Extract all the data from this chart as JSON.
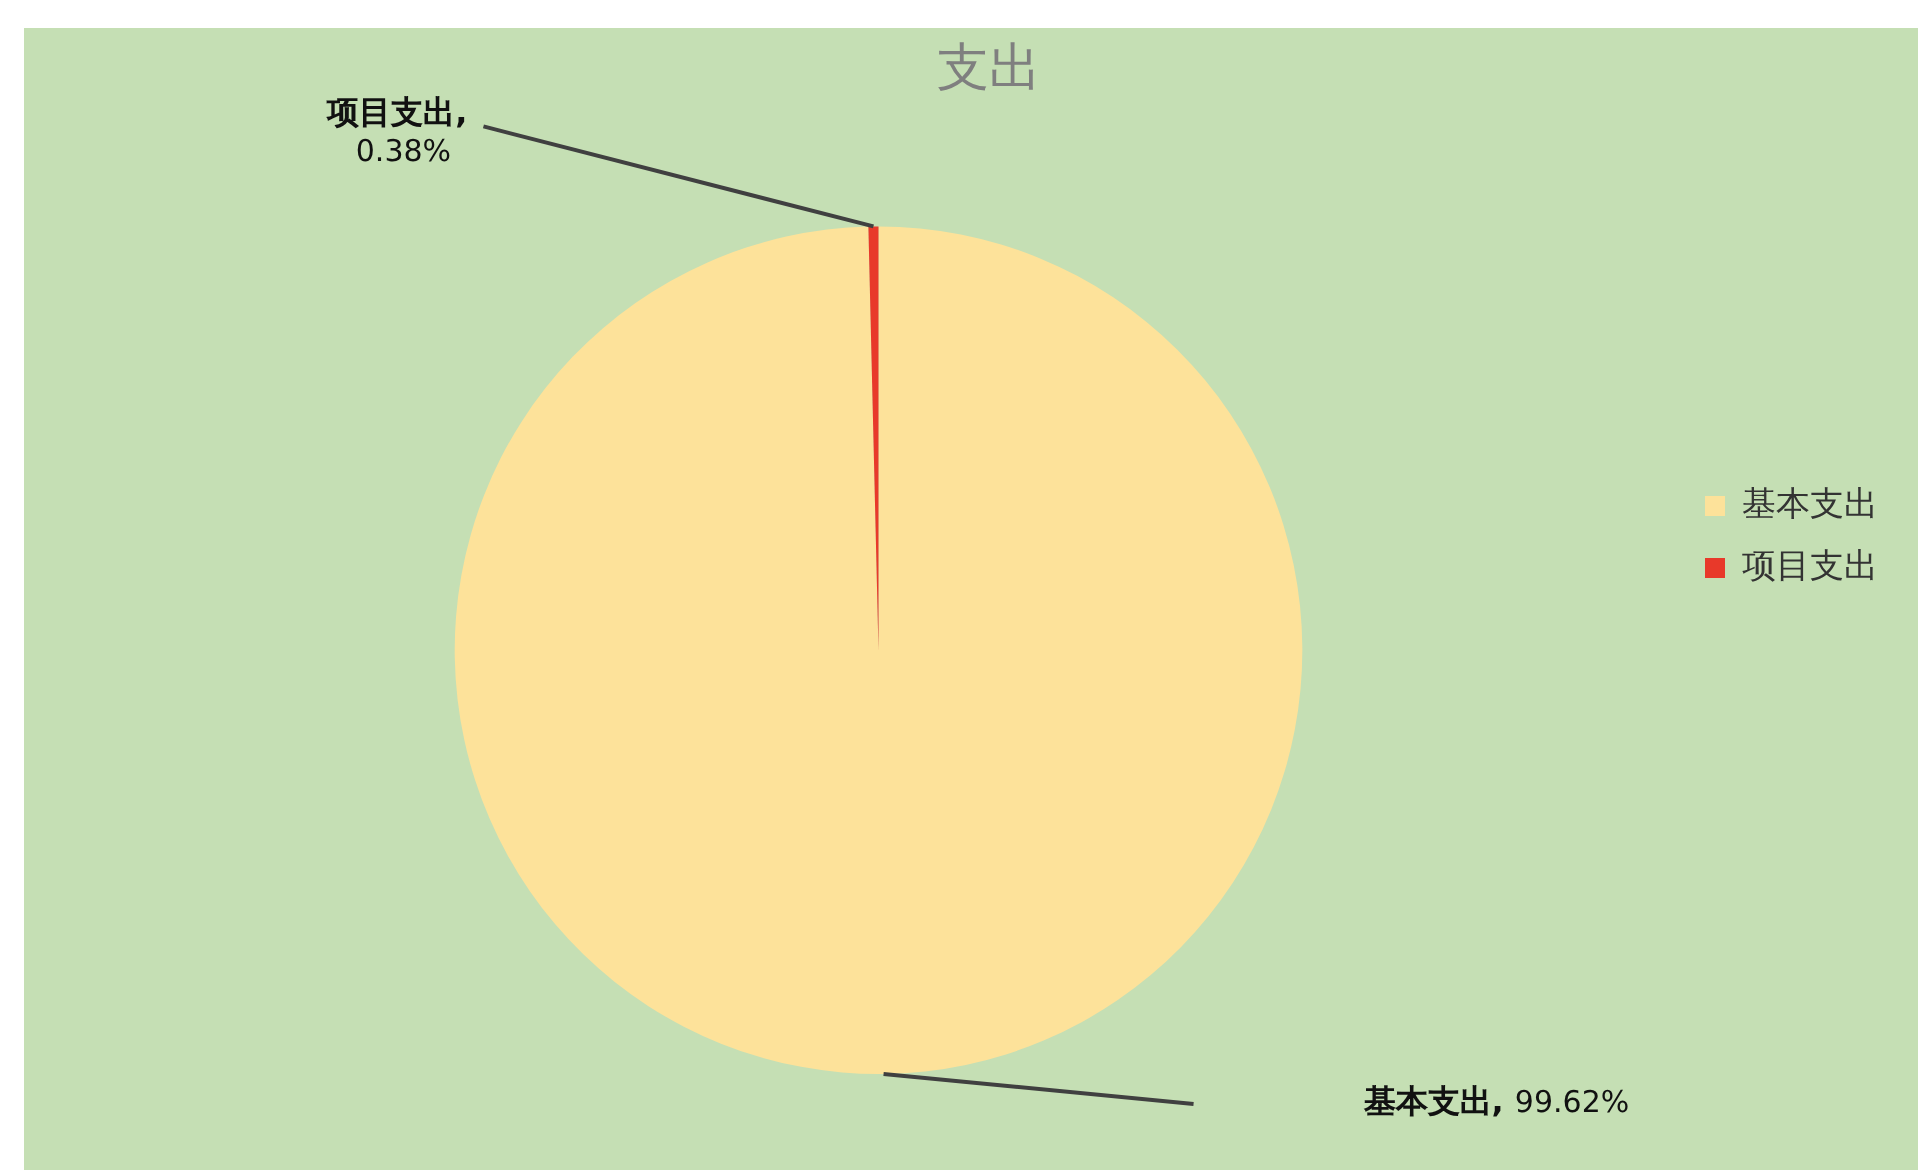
{
  "chart_data": {
    "type": "pie",
    "title": "支出",
    "categories": [
      "基本支出",
      "项目支出"
    ],
    "values": [
      99.62,
      0.38
    ],
    "colors": [
      "#fde29a",
      "#e8392a"
    ],
    "value_labels": [
      "基本支出, 99.62%",
      "项目支出, 0.38%"
    ],
    "legend": "right"
  }
}
